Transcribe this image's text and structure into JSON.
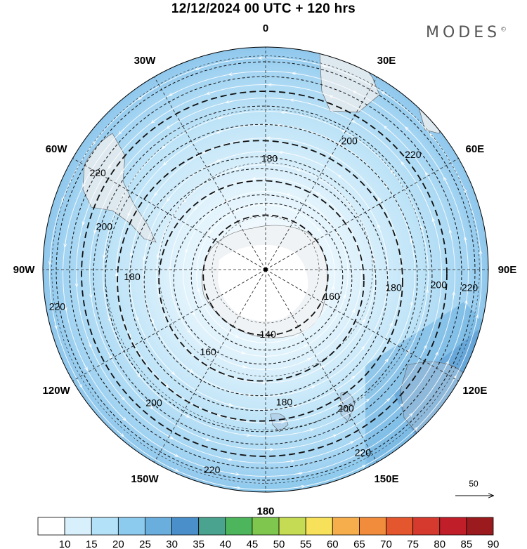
{
  "title": "12/12/2024  00 UTC  + 120 hrs",
  "brand": "MODES",
  "brand_mark": "©",
  "longitude_labels": [
    {
      "text": "0",
      "lon": 0
    },
    {
      "text": "30E",
      "lon": 30
    },
    {
      "text": "60E",
      "lon": 60
    },
    {
      "text": "90E",
      "lon": 90
    },
    {
      "text": "120E",
      "lon": 120
    },
    {
      "text": "150E",
      "lon": 150
    },
    {
      "text": "180",
      "lon": 180
    },
    {
      "text": "150W",
      "lon": -150
    },
    {
      "text": "120W",
      "lon": -120
    },
    {
      "text": "90W",
      "lon": -90
    },
    {
      "text": "60W",
      "lon": -60
    },
    {
      "text": "30W",
      "lon": -30
    }
  ],
  "contour_labels": [
    {
      "text": "220",
      "lon": -60,
      "ring": 0.87
    },
    {
      "text": "200",
      "lon": -75,
      "ring": 0.75
    },
    {
      "text": "180",
      "lon": -93,
      "ring": 0.6
    },
    {
      "text": "220",
      "lon": -100,
      "ring": 0.95
    },
    {
      "text": "160",
      "lon": -145,
      "ring": 0.45
    },
    {
      "text": "200",
      "lon": -140,
      "ring": 0.78
    },
    {
      "text": "220",
      "lon": -165,
      "ring": 0.93
    },
    {
      "text": "180",
      "lon": 172,
      "ring": 0.6
    },
    {
      "text": "200",
      "lon": 150,
      "ring": 0.72
    },
    {
      "text": "220",
      "lon": 152,
      "ring": 0.93
    },
    {
      "text": "140",
      "lon": 178,
      "ring": 0.29
    },
    {
      "text": "160",
      "lon": 112,
      "ring": 0.32
    },
    {
      "text": "180",
      "lon": 98,
      "ring": 0.58
    },
    {
      "text": "200",
      "lon": 95,
      "ring": 0.78
    },
    {
      "text": "220",
      "lon": 95,
      "ring": 0.92
    },
    {
      "text": "180",
      "lon": 2,
      "ring": 0.5
    },
    {
      "text": "200",
      "lon": 33,
      "ring": 0.69
    },
    {
      "text": "220",
      "lon": 52,
      "ring": 0.84
    }
  ],
  "reference_vector": {
    "label": "50"
  },
  "colorbar": {
    "labels": [
      "10",
      "15",
      "20",
      "25",
      "30",
      "35",
      "40",
      "45",
      "50",
      "55",
      "60",
      "65",
      "70",
      "75",
      "80",
      "85",
      "90"
    ],
    "colors": [
      "#ffffff",
      "#d7f0fb",
      "#b3e1f7",
      "#8ccbee",
      "#6aaede",
      "#4b8fca",
      "#4aa38f",
      "#4db65c",
      "#7ec64d",
      "#c6db54",
      "#f7e05a",
      "#f6ad4b",
      "#f08c3b",
      "#e4572e",
      "#d63a2e",
      "#c01f2a",
      "#9a1a1e"
    ]
  }
}
